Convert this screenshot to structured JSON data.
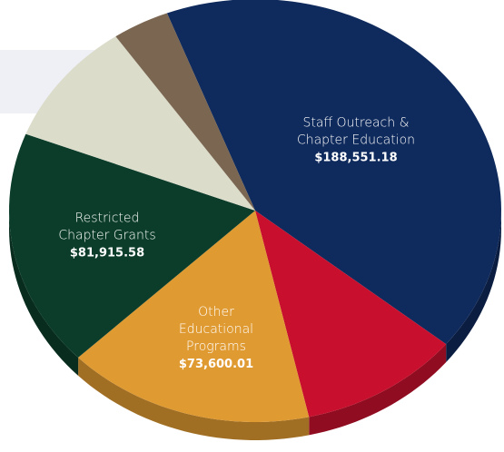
{
  "chart_data": {
    "type": "pie",
    "categories": [
      "Staff Outreach & Chapter Education",
      null,
      "Other Educational Programs",
      "Restricted Chapter Grants",
      null,
      null
    ],
    "values": [
      188551.18,
      48000,
      73600.01,
      81915.58,
      43000,
      17000
    ],
    "value_labels": [
      "$188,551.18",
      null,
      "$73,600.01",
      "$81,915.58",
      null,
      null
    ],
    "colors": [
      "#0f2a5c",
      "#c8102e",
      "#e09a32",
      "#0b3d2a",
      "#dcdccb",
      "#7a6651"
    ],
    "start_angle": -21
  }
}
